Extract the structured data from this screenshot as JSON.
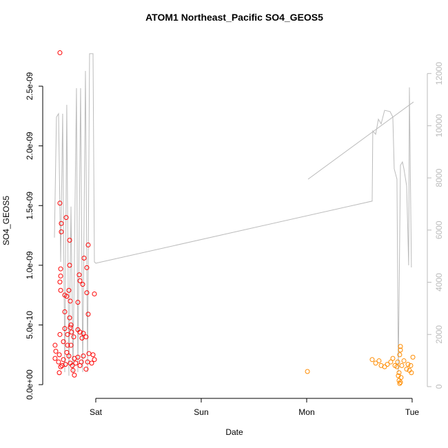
{
  "chart_data": {
    "type": "scatter",
    "title": "ATOM1 Northeast_Pacific SO4_GEOS5",
    "xlabel": "Date",
    "ylabel": "SO4_GEOS5",
    "xlim": [
      -0.503,
      3.144
    ],
    "xticks": [
      {
        "value": 0,
        "label": "Sat"
      },
      {
        "value": 1,
        "label": "Sun"
      },
      {
        "value": 2,
        "label": "Mon"
      },
      {
        "value": 3,
        "label": "Tue"
      }
    ],
    "ylim": [
      -1.15e-10,
      2.864e-09
    ],
    "yticks": [
      {
        "value": 0,
        "label": "0.0e+00"
      },
      {
        "value": 5e-10,
        "label": "5.0e-10"
      },
      {
        "value": 1e-09,
        "label": "1.0e-09"
      },
      {
        "value": 1.5e-09,
        "label": "1.5e-09"
      },
      {
        "value": 2e-09,
        "label": "2.0e-09"
      },
      {
        "value": 2.5e-09,
        "label": "2.5e-09"
      }
    ],
    "y2lim": [
      -450,
      13180
    ],
    "y2ticks": [
      0,
      2000,
      4000,
      6000,
      8000,
      10000,
      12000
    ],
    "y2color": "#bbbbbb",
    "series": [
      {
        "type": "line",
        "axis": "y2",
        "color": "#bbbbbb",
        "x": [
          -0.392,
          -0.373,
          -0.353,
          -0.333,
          -0.314,
          -0.294,
          -0.275,
          -0.255,
          -0.235,
          -0.216,
          -0.183,
          -0.17,
          -0.144,
          -0.124,
          -0.098,
          -0.078,
          -0.059,
          -0.026,
          -0.013,
          0,
          2.621,
          2.627,
          2.654,
          2.68,
          2.706,
          2.739,
          2.791,
          2.817,
          2.83,
          2.856,
          2.869,
          2.889,
          2.908,
          2.922,
          2.948,
          2.967,
          2.974,
          2.993,
          null,
          2.013,
          3.013
        ],
        "values": [
          5710,
          10330,
          10460,
          4780,
          10460,
          555,
          10800,
          420,
          6900,
          555,
          11440,
          555,
          11440,
          555,
          12100,
          555,
          12760,
          12760,
          4780,
          4730,
          7110,
          9800,
          9670,
          10250,
          10070,
          10590,
          10540,
          10330,
          8350,
          7950,
          555,
          8480,
          8610,
          8350,
          7690,
          4650,
          11470,
          4570,
          null,
          7950,
          10910
        ]
      },
      {
        "type": "points",
        "color": "#ff0000",
        "x": [
          -0.34,
          -0.34,
          -0.327,
          -0.327,
          -0.281,
          -0.248,
          -0.072,
          -0.111,
          -0.248,
          -0.333,
          -0.085,
          -0.333,
          -0.157,
          -0.34,
          -0.15,
          -0.124,
          -0.333,
          -0.255,
          -0.294,
          -0.275,
          -0.085,
          -0.013,
          -0.242,
          -0.17,
          -0.294,
          -0.072,
          -0.248,
          -0.235,
          -0.242,
          -0.294,
          -0.17,
          -0.15,
          -0.118,
          -0.34,
          -0.229,
          -0.268,
          -0.209,
          -0.131,
          -0.092,
          -0.307,
          -0.268,
          -0.386,
          -0.235,
          -0.379,
          -0.346,
          -0.275,
          -0.386,
          -0.307,
          -0.255,
          -0.203,
          -0.17,
          -0.118,
          -0.065,
          -0.026,
          -0.353,
          -0.288,
          -0.222,
          -0.19,
          -0.137,
          -0.078,
          -0.039,
          -0.013,
          -0.333,
          -0.216,
          -0.346,
          -0.203,
          -0.092,
          -0.32,
          -0.15,
          -0.242
        ],
        "values": [
          2.78e-09,
          1.52e-09,
          1.35e-09,
          1.28e-09,
          1.4e-09,
          1.21e-09,
          1.17e-09,
          1.06e-09,
          1e-09,
          9.7e-10,
          9.8e-10,
          9.1e-10,
          9.2e-10,
          8.6e-10,
          8.7e-10,
          8.4e-10,
          7.9e-10,
          7.9e-10,
          7.5e-10,
          7.4e-10,
          7.7e-10,
          7.6e-10,
          7e-10,
          6.9e-10,
          6.1e-10,
          5.9e-10,
          5.6e-10,
          5e-10,
          4.8e-10,
          4.7e-10,
          4.6e-10,
          4.4e-10,
          4.3e-10,
          4.2e-10,
          4.4e-10,
          4.2e-10,
          4e-10,
          3.9e-10,
          4e-10,
          3.6e-10,
          3.3e-10,
          3.3e-10,
          3.3e-10,
          2.8e-10,
          2.5e-10,
          2.7e-10,
          2.2e-10,
          2.1e-10,
          2.4e-10,
          2.2e-10,
          2.3e-10,
          2.4e-10,
          2.6e-10,
          2.5e-10,
          1.9e-10,
          1.7e-10,
          1.6e-10,
          1.8e-10,
          1.9e-10,
          1.9e-10,
          1.8e-10,
          2.1e-10,
          1.5e-10,
          1.2e-10,
          1e-10,
          8e-11,
          1.3e-10,
          1.6e-10,
          1.6e-10,
          1.8e-10
        ]
      },
      {
        "type": "points",
        "color": "#ff8c00",
        "x": [
          2.007,
          2.621,
          2.654,
          2.686,
          2.706,
          2.739,
          2.765,
          2.797,
          2.817,
          2.837,
          2.856,
          2.869,
          2.876,
          2.882,
          2.895,
          2.889,
          2.889,
          2.882,
          2.902,
          2.922,
          2.948,
          2.974,
          2.993,
          3.007,
          2.961,
          2.863,
          2.876,
          2.889,
          2.987
        ],
        "values": [
          1.1e-10,
          2.1e-10,
          1.8e-10,
          2e-10,
          1.6e-10,
          1.5e-10,
          1.7e-10,
          1.9e-10,
          2.2e-10,
          1.6e-10,
          1.5e-10,
          7.5e-11,
          3.5e-11,
          1e-11,
          6e-11,
          3.2e-10,
          2.9e-10,
          2.5e-10,
          1.6e-10,
          2e-10,
          1.3e-10,
          1.2e-10,
          1e-10,
          2.3e-10,
          1.7e-10,
          1.9e-10,
          1e-10,
          2e-11,
          1.6e-10
        ]
      }
    ]
  }
}
